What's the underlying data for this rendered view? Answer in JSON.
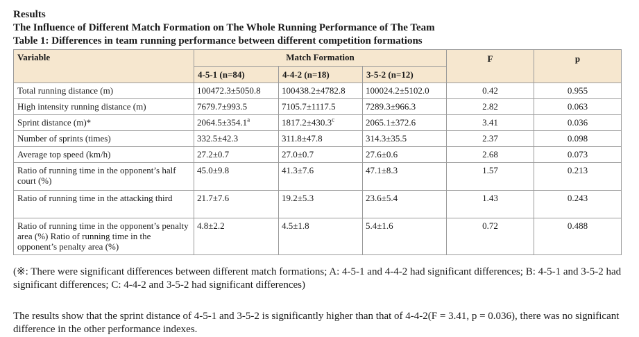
{
  "heading": {
    "results": "Results",
    "subtitle": "The Influence of Different Match Formation on The Whole Running Performance of The Team",
    "table_caption": "Table 1: Differences in team running performance between different competition formations"
  },
  "table": {
    "col_variable": "Variable",
    "col_group": "Match Formation",
    "col_f": "F",
    "col_p": "p",
    "formations": [
      "4-5-1 (n=84)",
      "4-4-2 (n=18)",
      "3-5-2 (n=12)"
    ],
    "rows": [
      {
        "variable": "Total running distance (m)",
        "f451": "100472.3±5050.8",
        "f442": "100438.2±4782.8",
        "f352": "100024.2±5102.0",
        "F": "0.42",
        "p": "0.955"
      },
      {
        "variable": "High intensity running distance (m)",
        "f451": "7679.7±993.5",
        "f442": "7105.7±1117.5",
        "f352": "7289.3±966.3",
        "F": "2.82",
        "p": "0.063"
      },
      {
        "variable": "Sprint distance (m)*",
        "f451": "2064.5±354.1",
        "f451_sup": "a",
        "f442": "1817.2±430.3",
        "f442_sup": "c",
        "f352": "2065.1±372.6",
        "F": "3.41",
        "p": "0.036"
      },
      {
        "variable": "Number of sprints (times)",
        "f451": "332.5±42.3",
        "f442": "311.8±47.8",
        "f352": "314.3±35.5",
        "F": "2.37",
        "p": "0.098"
      },
      {
        "variable": "Average top speed (km/h)",
        "f451": "27.2±0.7",
        "f442": "27.0±0.7",
        "f352": "27.6±0.6",
        "F": "2.68",
        "p": "0.073"
      },
      {
        "variable": "Ratio of running time in the opponent’s half court (%)",
        "f451": "45.0±9.8",
        "f442": "41.3±7.6",
        "f352": "47.1±8.3",
        "F": "1.57",
        "p": "0.213"
      },
      {
        "variable": "Ratio of running time in the attacking third",
        "f451": "21.7±7.6",
        "f442": "19.2±5.3",
        "f352": "23.6±5.4",
        "F": "1.43",
        "p": "0.243"
      },
      {
        "variable": "Ratio of running time in the opponent’s penalty area (%) Ratio of running time in the opponent’s penalty area (%)",
        "f451": "4.8±2.2",
        "f442": "4.5±1.8",
        "f352": "5.4±1.6",
        "F": "0.72",
        "p": "0.488"
      }
    ]
  },
  "notes": {
    "footnote": "(※: There were significant differences between different match formations; A: 4-5-1 and 4-4-2 had significant differences; B: 4-5-1 and 3-5-2 had significant differences; C: 4-4-2 and 3-5-2 had significant differences)",
    "summary": "The results show that the sprint distance of 4-5-1 and 3-5-2 is significantly higher than that of 4-4-2(F = 3.41, p = 0.036), there was no significant difference in the other performance indexes."
  }
}
